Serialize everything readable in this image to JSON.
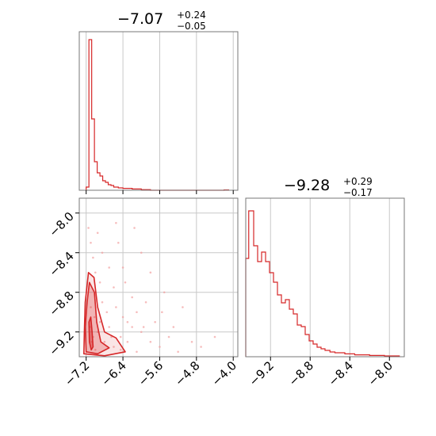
{
  "chart_data": [
    {
      "type": "histogram",
      "panel": "top-left",
      "title": {
        "value": "−7.07",
        "plus": "+0.24",
        "minus": "−0.05"
      },
      "xlim": [
        -7.35,
        -3.9
      ],
      "ylim": [
        0,
        1.0
      ],
      "xticks": [
        -7.2,
        -6.4,
        -5.6,
        -4.8,
        -4.0
      ],
      "grid": true,
      "color": "#d62728",
      "bins": [
        [
          -7.2,
          -7.14,
          0.02
        ],
        [
          -7.14,
          -7.08,
          0.95
        ],
        [
          -7.08,
          -7.02,
          0.45
        ],
        [
          -7.02,
          -6.96,
          0.18
        ],
        [
          -6.96,
          -6.9,
          0.11
        ],
        [
          -6.9,
          -6.84,
          0.09
        ],
        [
          -6.84,
          -6.78,
          0.06
        ],
        [
          -6.78,
          -6.72,
          0.05
        ],
        [
          -6.72,
          -6.66,
          0.035
        ],
        [
          -6.66,
          -6.6,
          0.03
        ],
        [
          -6.6,
          -6.5,
          0.02
        ],
        [
          -6.5,
          -6.4,
          0.015
        ],
        [
          -6.4,
          -6.2,
          0.012
        ],
        [
          -6.2,
          -6.0,
          0.008
        ],
        [
          -6.0,
          -5.8,
          0.004
        ],
        [
          -5.8,
          -4.2,
          0.0
        ],
        [
          -4.2,
          -4.1,
          0.002
        ]
      ]
    },
    {
      "type": "histogram",
      "panel": "bottom-right",
      "title": {
        "value": "−9.28",
        "plus": "+0.29",
        "minus": "−0.17"
      },
      "xlim": [
        -9.45,
        -7.85
      ],
      "ylim": [
        0,
        1.0
      ],
      "xticks": [
        -9.2,
        -8.8,
        -8.4,
        -8.0
      ],
      "tick_labels": [
        "−9.2",
        "−8.8",
        "−8.4",
        "−8.0"
      ],
      "grid": true,
      "color": "#d62728",
      "bins": [
        [
          -9.45,
          -9.42,
          0.62
        ],
        [
          -9.42,
          -9.37,
          0.92
        ],
        [
          -9.37,
          -9.33,
          0.7
        ],
        [
          -9.33,
          -9.29,
          0.6
        ],
        [
          -9.29,
          -9.25,
          0.66
        ],
        [
          -9.25,
          -9.21,
          0.6
        ],
        [
          -9.21,
          -9.17,
          0.53
        ],
        [
          -9.17,
          -9.13,
          0.47
        ],
        [
          -9.13,
          -9.09,
          0.39
        ],
        [
          -9.09,
          -9.05,
          0.34
        ],
        [
          -9.05,
          -9.01,
          0.36
        ],
        [
          -9.01,
          -8.97,
          0.3
        ],
        [
          -8.97,
          -8.93,
          0.27
        ],
        [
          -8.93,
          -8.89,
          0.2
        ],
        [
          -8.89,
          -8.85,
          0.19
        ],
        [
          -8.85,
          -8.81,
          0.14
        ],
        [
          -8.81,
          -8.77,
          0.1
        ],
        [
          -8.77,
          -8.73,
          0.08
        ],
        [
          -8.73,
          -8.69,
          0.06
        ],
        [
          -8.69,
          -8.65,
          0.05
        ],
        [
          -8.65,
          -8.6,
          0.04
        ],
        [
          -8.6,
          -8.55,
          0.03
        ],
        [
          -8.55,
          -8.45,
          0.025
        ],
        [
          -8.45,
          -8.35,
          0.018
        ],
        [
          -8.35,
          -8.2,
          0.012
        ],
        [
          -8.2,
          -8.05,
          0.008
        ],
        [
          -8.05,
          -7.9,
          0.005
        ]
      ]
    },
    {
      "type": "scatter",
      "panel": "bottom-left",
      "xlim": [
        -7.35,
        -3.9
      ],
      "ylim": [
        -9.45,
        -7.85
      ],
      "xticks": [
        -7.2,
        -6.4,
        -5.6,
        -4.8,
        -4.0
      ],
      "yticks": [
        -9.2,
        -8.8,
        -8.4,
        -8.0
      ],
      "tick_labels": [
        "−7.2",
        "−6.4",
        "−5.6",
        "−4.8",
        "−4.0"
      ],
      "ytick_labels": [
        "−9.2",
        "−8.8",
        "−8.4",
        "−8.0"
      ],
      "grid": true,
      "color": "#d62728",
      "contours": [
        [
          [
            -7.1,
            -9.05
          ],
          [
            -7.07,
            -9.2
          ],
          [
            -7.05,
            -9.35
          ],
          [
            -7.09,
            -9.38
          ],
          [
            -7.13,
            -9.3
          ],
          [
            -7.14,
            -9.1
          ]
        ],
        [
          [
            -7.13,
            -8.7
          ],
          [
            -7.02,
            -8.8
          ],
          [
            -6.97,
            -9.1
          ],
          [
            -6.88,
            -9.3
          ],
          [
            -6.7,
            -9.36
          ],
          [
            -6.95,
            -9.42
          ],
          [
            -7.2,
            -9.4
          ],
          [
            -7.22,
            -9.15
          ],
          [
            -7.18,
            -8.9
          ]
        ],
        [
          [
            -7.15,
            -8.6
          ],
          [
            -7.03,
            -8.65
          ],
          [
            -6.95,
            -8.95
          ],
          [
            -6.8,
            -9.2
          ],
          [
            -6.55,
            -9.26
          ],
          [
            -6.35,
            -9.4
          ],
          [
            -6.8,
            -9.44
          ],
          [
            -7.25,
            -9.42
          ],
          [
            -7.24,
            -9.2
          ],
          [
            -7.22,
            -8.9
          ]
        ]
      ],
      "points": [
        [
          -7.12,
          -9.15
        ],
        [
          -7.08,
          -9.3
        ],
        [
          -7.05,
          -9.25
        ],
        [
          -7.1,
          -8.95
        ],
        [
          -7.02,
          -9.05
        ],
        [
          -6.95,
          -9.2
        ],
        [
          -6.9,
          -9.1
        ],
        [
          -6.8,
          -9.3
        ],
        [
          -6.7,
          -9.15
        ],
        [
          -6.6,
          -9.35
        ],
        [
          -6.55,
          -8.95
        ],
        [
          -6.45,
          -9.25
        ],
        [
          -6.4,
          -9.05
        ],
        [
          -6.35,
          -8.7
        ],
        [
          -6.3,
          -9.3
        ],
        [
          -6.2,
          -9.15
        ],
        [
          -6.1,
          -9.4
        ],
        [
          -6.0,
          -9.2
        ],
        [
          -5.9,
          -8.9
        ],
        [
          -5.8,
          -9.3
        ],
        [
          -5.7,
          -9.1
        ],
        [
          -5.6,
          -9.35
        ],
        [
          -5.5,
          -8.8
        ],
        [
          -5.4,
          -9.25
        ],
        [
          -5.2,
          -9.4
        ],
        [
          -4.9,
          -9.3
        ],
        [
          -4.7,
          -9.35
        ],
        [
          -4.4,
          -9.25
        ],
        [
          -6.85,
          -8.4
        ],
        [
          -6.5,
          -8.3
        ],
        [
          -6.7,
          -8.55
        ],
        [
          -6.95,
          -8.2
        ],
        [
          -7.15,
          -8.15
        ],
        [
          -7.05,
          -8.45
        ],
        [
          -6.4,
          -8.55
        ],
        [
          -6.0,
          -8.4
        ],
        [
          -5.8,
          -8.6
        ],
        [
          -6.6,
          -8.75
        ],
        [
          -6.9,
          -8.7
        ],
        [
          -6.2,
          -8.85
        ],
        [
          -5.55,
          -9.0
        ],
        [
          -6.75,
          -9.0
        ],
        [
          -6.3,
          -9.1
        ],
        [
          -7.0,
          -8.6
        ],
        [
          -6.85,
          -8.9
        ],
        [
          -5.1,
          -8.95
        ],
        [
          -6.15,
          -8.15
        ],
        [
          -6.55,
          -8.1
        ],
        [
          -7.1,
          -8.3
        ],
        [
          -6.1,
          -9.0
        ],
        [
          -5.95,
          -9.15
        ],
        [
          -6.65,
          -9.25
        ],
        [
          -6.45,
          -9.38
        ],
        [
          -7.0,
          -9.38
        ],
        [
          -5.3,
          -9.15
        ]
      ]
    }
  ]
}
